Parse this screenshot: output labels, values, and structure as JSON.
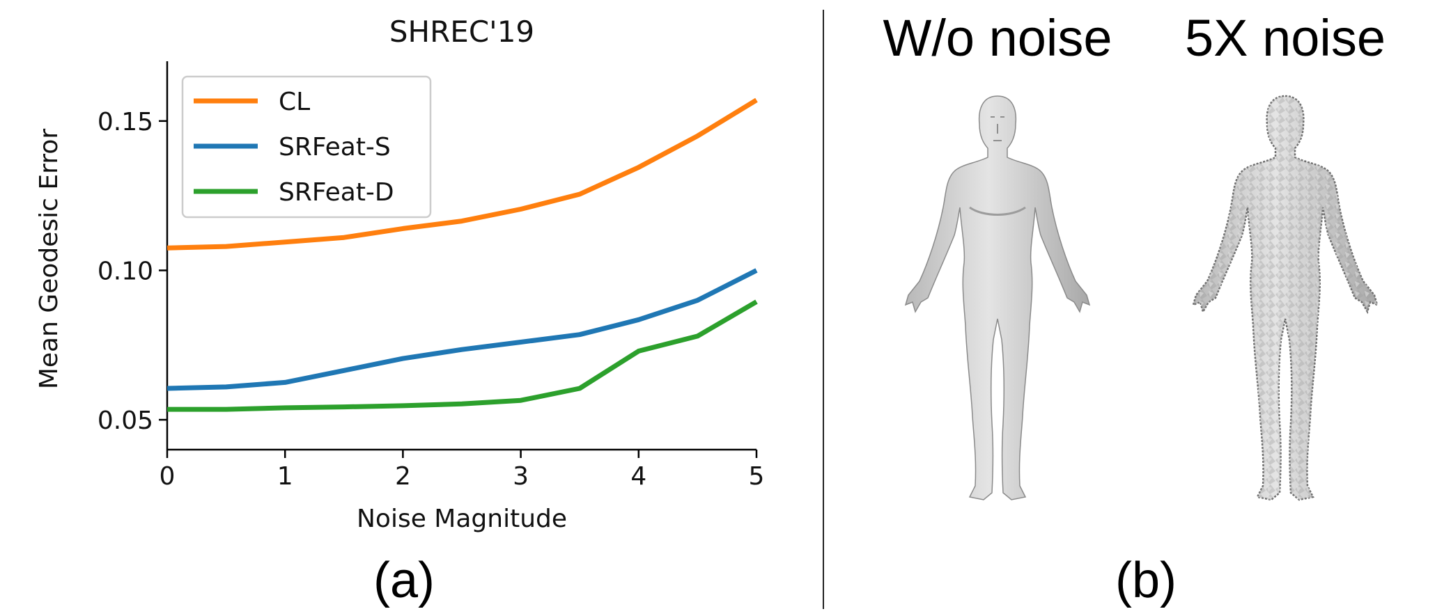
{
  "chart_data": {
    "type": "line",
    "title": "SHREC'19",
    "xlabel": "Noise Magnitude",
    "ylabel": "Mean Geodesic Error",
    "xlim": [
      0,
      5
    ],
    "ylim": [
      0.04,
      0.17
    ],
    "xticks": [
      0,
      1,
      2,
      3,
      4,
      5
    ],
    "xtick_labels": [
      "0",
      "1",
      "2",
      "3",
      "4",
      "5"
    ],
    "yticks": [
      0.05,
      0.1,
      0.15
    ],
    "ytick_labels": [
      "0.05",
      "0.10",
      "0.15"
    ],
    "grid": false,
    "legend_position": "top-left",
    "x": [
      0,
      0.5,
      1,
      1.5,
      2,
      2.5,
      3,
      3.5,
      4,
      4.5,
      5
    ],
    "series": [
      {
        "name": "CL",
        "color": "#ff7f0e",
        "values": [
          0.1075,
          0.108,
          0.1095,
          0.111,
          0.114,
          0.1165,
          0.1205,
          0.1255,
          0.1345,
          0.145,
          0.157
        ]
      },
      {
        "name": "SRFeat-S",
        "color": "#1f77b4",
        "values": [
          0.0605,
          0.061,
          0.0625,
          0.0665,
          0.0705,
          0.0735,
          0.076,
          0.0785,
          0.0835,
          0.09,
          0.1
        ]
      },
      {
        "name": "SRFeat-D",
        "color": "#2ca02c",
        "values": [
          0.0535,
          0.0535,
          0.054,
          0.0543,
          0.0547,
          0.0553,
          0.0565,
          0.0605,
          0.073,
          0.078,
          0.0895
        ]
      }
    ]
  },
  "panel_a_caption": "(a)",
  "panel_b": {
    "caption": "(b)",
    "left_label": "W/o noise",
    "right_label": "5X noise",
    "mesh_color": "#c8c8c8"
  }
}
